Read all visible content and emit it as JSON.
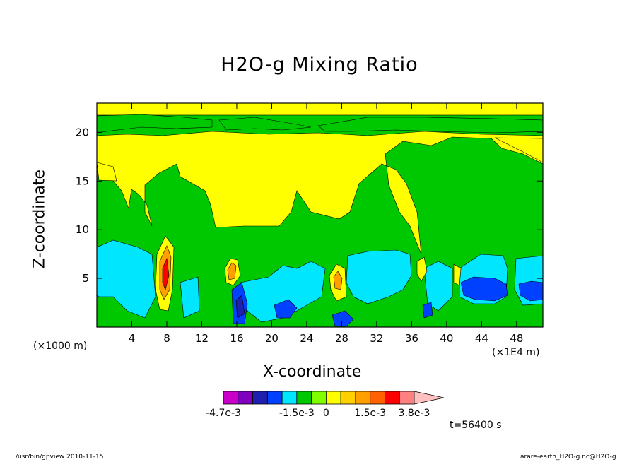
{
  "chart_data": {
    "type": "heatmap",
    "title": "H2O-g Mixing Ratio",
    "xlabel": "X-coordinate",
    "ylabel": "Z-coordinate",
    "x_unit_label": "(×1000 m)",
    "x_scale_label": "(×1E4 m)",
    "time_label": "t=56400 s",
    "xlim": [
      0,
      51
    ],
    "ylim": [
      0,
      23
    ],
    "x_ticks": [
      4,
      8,
      12,
      16,
      20,
      24,
      28,
      32,
      36,
      40,
      44,
      48
    ],
    "y_ticks": [
      5,
      10,
      15,
      20
    ],
    "colorbar": {
      "labels": [
        "-4.7e-3",
        "-1.5e-3",
        "0",
        "1.5e-3",
        "3.8e-3"
      ],
      "label_at": [
        0,
        5,
        7,
        10,
        13
      ],
      "colors": [
        "#c800c8",
        "#8000c0",
        "#2020b0",
        "#0040ff",
        "#00e6ff",
        "#00c800",
        "#80ff00",
        "#ffff00",
        "#ffd000",
        "#ffa000",
        "#ff6000",
        "#ff0000",
        "#ff8080",
        "#ffc0c0"
      ]
    },
    "regions": [
      {
        "name": "background",
        "color": "#00c800"
      },
      {
        "name": "upper-moist-layer",
        "color": "#ffff00"
      },
      {
        "name": "lower-dry-layer",
        "color": "#00e6ff"
      },
      {
        "name": "dry-cores",
        "color": "#0040ff"
      },
      {
        "name": "moist-plumes",
        "color": "#ffa000"
      }
    ]
  },
  "footer": {
    "left": "/usr/bin/gpview   2010-11-15",
    "right": "arare-earth_H2O-g.nc@H2O-g"
  }
}
